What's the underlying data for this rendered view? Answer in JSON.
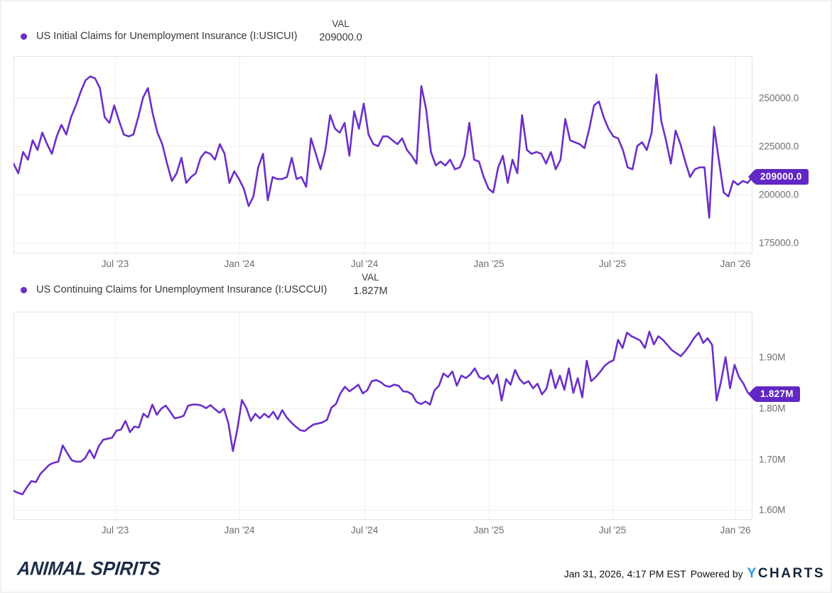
{
  "page": {
    "background": "#ffffff",
    "card_border_color": "#f1f1f1"
  },
  "chart_data": [
    {
      "type": "line",
      "title": "",
      "val_header": "VAL",
      "last_value_label": "209000.0",
      "last_value": 209000.0,
      "line_color": "#6b2fc9",
      "badge_color": "#6227c4",
      "grid": true,
      "legend_position": "top-left",
      "frequency": "weekly",
      "x_start": "Feb 2023",
      "x_end": "Jan 2026",
      "x_ticks": [
        {
          "label": "Jul '23",
          "pos": 0.1375
        },
        {
          "label": "Jan '24",
          "pos": 0.3058
        },
        {
          "label": "Jul '24",
          "pos": 0.475
        },
        {
          "label": "Jan '25",
          "pos": 0.6433
        },
        {
          "label": "Jul '25",
          "pos": 0.8106
        },
        {
          "label": "Jan '26",
          "pos": 0.977
        }
      ],
      "y_ticks": [
        {
          "label": "250000.0",
          "value": 250000
        },
        {
          "label": "225000.0",
          "value": 225000
        },
        {
          "label": "200000.0",
          "value": 200000
        },
        {
          "label": "175000.0",
          "value": 175000
        }
      ],
      "ylim": [
        169500,
        271500
      ],
      "series": [
        {
          "name": "US Initial Claims for Unemployment Insurance (I:USICUI)",
          "ticker": "I:USICUI",
          "values": [
            216000,
            211000,
            222000,
            218000,
            228000,
            223000,
            232000,
            226000,
            221000,
            230000,
            236000,
            231000,
            240000,
            246000,
            253000,
            259000,
            261000,
            260000,
            255000,
            240000,
            237000,
            246000,
            238000,
            231000,
            230000,
            231000,
            240000,
            250000,
            255000,
            242000,
            232000,
            226000,
            216000,
            207000,
            211000,
            219000,
            206000,
            209000,
            211000,
            219000,
            222000,
            221000,
            218000,
            226000,
            221000,
            206000,
            212000,
            208000,
            203000,
            194000,
            199000,
            214000,
            221000,
            197000,
            209000,
            208000,
            208000,
            209000,
            219000,
            208000,
            209000,
            204000,
            229000,
            221000,
            213000,
            223000,
            241000,
            234000,
            232000,
            237000,
            220000,
            243000,
            234000,
            247000,
            231000,
            226000,
            225000,
            230000,
            230000,
            228000,
            226000,
            229000,
            223000,
            220000,
            216000,
            256000,
            244000,
            222000,
            215000,
            217000,
            215000,
            218000,
            213000,
            214000,
            220000,
            237000,
            218000,
            217000,
            209000,
            203000,
            201000,
            214000,
            220000,
            206000,
            218000,
            211000,
            241000,
            223000,
            221000,
            222000,
            221000,
            216000,
            222000,
            213000,
            218000,
            239000,
            228000,
            227000,
            226000,
            224000,
            234000,
            246000,
            248000,
            240000,
            234000,
            230000,
            229000,
            223000,
            214000,
            213000,
            225000,
            227000,
            223000,
            232000,
            262000,
            238000,
            228000,
            216000,
            233000,
            226000,
            217000,
            209000,
            213000,
            214000,
            214000,
            188000,
            235000,
            218000,
            201000,
            199000,
            207000,
            205000,
            207000,
            206000,
            209000
          ]
        }
      ]
    },
    {
      "type": "line",
      "title": "",
      "val_header": "VAL",
      "last_value_label": "1.827M",
      "last_value": 1827000,
      "unit": "millions",
      "line_color": "#6b2fc9",
      "badge_color": "#6227c4",
      "grid": true,
      "legend_position": "top-left",
      "frequency": "weekly",
      "x_start": "Feb 2023",
      "x_end": "Jan 2026",
      "x_ticks": [
        {
          "label": "Jul '23",
          "pos": 0.1375
        },
        {
          "label": "Jan '24",
          "pos": 0.3058
        },
        {
          "label": "Jul '24",
          "pos": 0.475
        },
        {
          "label": "Jan '25",
          "pos": 0.6433
        },
        {
          "label": "Jul '25",
          "pos": 0.8106
        },
        {
          "label": "Jan '26",
          "pos": 0.977
        }
      ],
      "y_ticks": [
        {
          "label": "1.90M",
          "value": 1.9
        },
        {
          "label": "1.80M",
          "value": 1.8
        },
        {
          "label": "1.70M",
          "value": 1.7
        },
        {
          "label": "1.60M",
          "value": 1.6
        }
      ],
      "ylim": [
        1.581,
        1.989
      ],
      "series": [
        {
          "name": "US Continuing Claims for Unemployment Insurance (I:USCCUI)",
          "ticker": "I:USCCUI",
          "values": [
            1.638,
            1.634,
            1.631,
            1.645,
            1.657,
            1.655,
            1.671,
            1.68,
            1.689,
            1.693,
            1.695,
            1.727,
            1.712,
            1.698,
            1.695,
            1.695,
            1.702,
            1.718,
            1.702,
            1.725,
            1.738,
            1.74,
            1.742,
            1.756,
            1.758,
            1.775,
            1.753,
            1.764,
            1.762,
            1.789,
            1.782,
            1.807,
            1.787,
            1.799,
            1.805,
            1.793,
            1.78,
            1.782,
            1.785,
            1.805,
            1.807,
            1.807,
            1.805,
            1.8,
            1.806,
            1.798,
            1.791,
            1.799,
            1.77,
            1.716,
            1.76,
            1.816,
            1.8,
            1.775,
            1.789,
            1.78,
            1.789,
            1.782,
            1.793,
            1.778,
            1.796,
            1.782,
            1.772,
            1.764,
            1.757,
            1.755,
            1.762,
            1.768,
            1.77,
            1.772,
            1.777,
            1.801,
            1.808,
            1.829,
            1.842,
            1.833,
            1.839,
            1.846,
            1.829,
            1.835,
            1.853,
            1.855,
            1.851,
            1.844,
            1.842,
            1.846,
            1.844,
            1.833,
            1.832,
            1.827,
            1.812,
            1.808,
            1.813,
            1.807,
            1.835,
            1.844,
            1.868,
            1.861,
            1.872,
            1.844,
            1.864,
            1.859,
            1.866,
            1.878,
            1.861,
            1.857,
            1.864,
            1.848,
            1.866,
            1.815,
            1.857,
            1.846,
            1.875,
            1.857,
            1.848,
            1.853,
            1.839,
            1.848,
            1.827,
            1.838,
            1.875,
            1.839,
            1.864,
            1.836,
            1.878,
            1.83,
            1.859,
            1.821,
            1.893,
            1.853,
            1.861,
            1.871,
            1.883,
            1.89,
            1.894,
            1.934,
            1.918,
            1.948,
            1.941,
            1.937,
            1.932,
            1.918,
            1.95,
            1.925,
            1.941,
            1.934,
            1.924,
            1.914,
            1.908,
            1.902,
            1.912,
            1.924,
            1.938,
            1.948,
            1.928,
            1.937,
            1.924,
            1.815,
            1.853,
            1.9,
            1.839,
            1.885,
            1.861,
            1.848,
            1.83,
            1.827
          ]
        }
      ]
    }
  ],
  "footer": {
    "brand": "Animal Spirits",
    "timestamp": "Jan 31, 2026, 4:17 PM EST",
    "powered_by": "Powered by",
    "provider_y": "Y",
    "provider_rest": "CHARTS",
    "provider_y_color": "#1e9be9",
    "provider_rest_color": "#13263c"
  }
}
